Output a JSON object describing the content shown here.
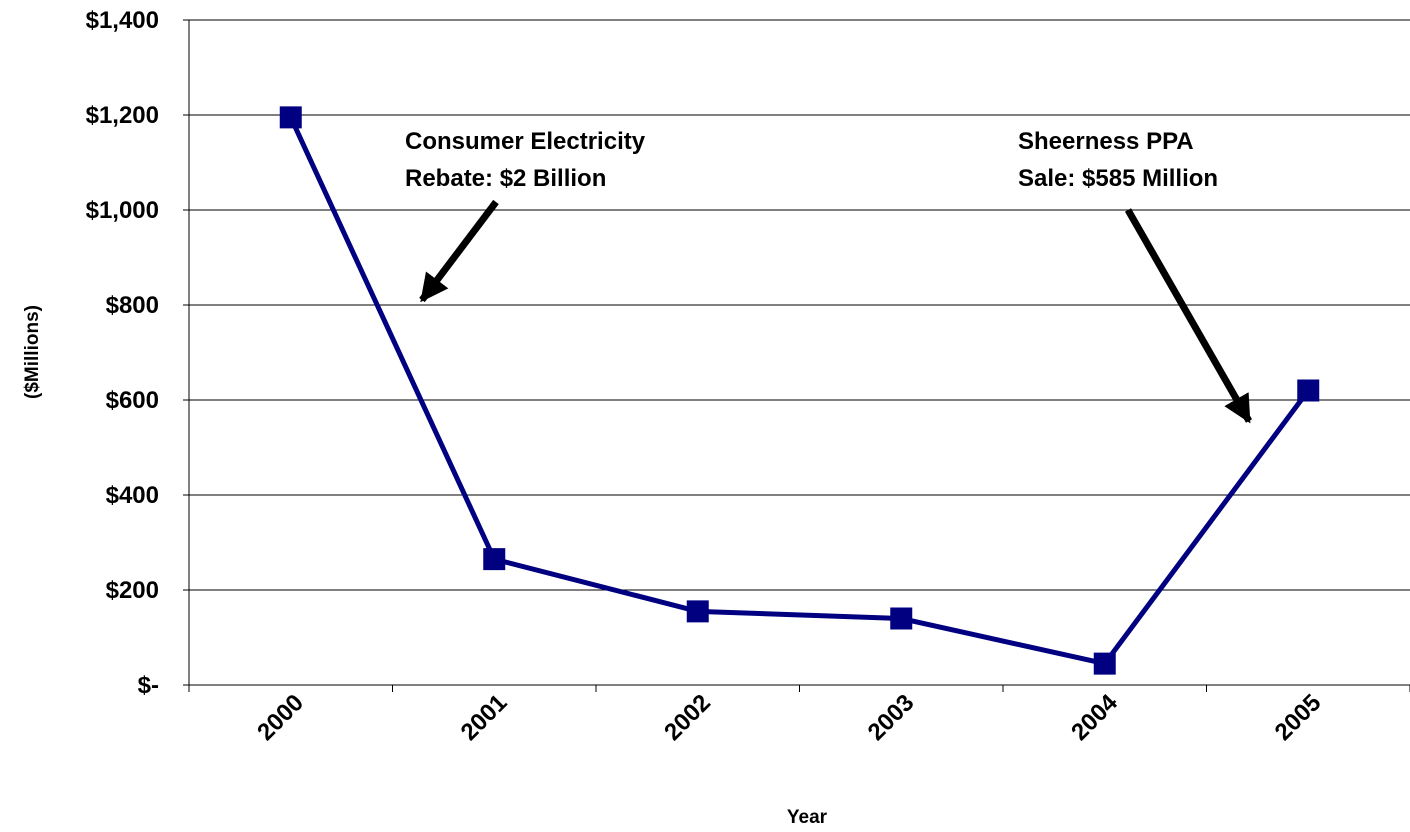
{
  "chart_data": {
    "type": "line",
    "title": "",
    "xlabel": "Year",
    "ylabel": "($Millions)",
    "categories": [
      "2000",
      "2001",
      "2002",
      "2003",
      "2004",
      "2005"
    ],
    "series": [
      {
        "values": [
          1195,
          265,
          155,
          140,
          45,
          620
        ]
      }
    ],
    "ylim": [
      0,
      1400
    ],
    "yticks": [
      {
        "value": 0,
        "label": "$-"
      },
      {
        "value": 200,
        "label": "$200"
      },
      {
        "value": 400,
        "label": "$400"
      },
      {
        "value": 600,
        "label": "$600"
      },
      {
        "value": 800,
        "label": "$800"
      },
      {
        "value": 1000,
        "label": "$1,000"
      },
      {
        "value": 1200,
        "label": "$1,200"
      },
      {
        "value": 1400,
        "label": "$1,400"
      }
    ],
    "grid": true,
    "legend": "none",
    "annotations": [
      {
        "lines": [
          "Consumer Electricity",
          "Rebate: $2 Billion"
        ]
      },
      {
        "lines": [
          "Sheerness PPA",
          "Sale: $585 Million"
        ]
      }
    ],
    "colors": {
      "line": "#000080",
      "marker": "#000080",
      "grid": "#000000",
      "arrow": "#000000"
    }
  }
}
